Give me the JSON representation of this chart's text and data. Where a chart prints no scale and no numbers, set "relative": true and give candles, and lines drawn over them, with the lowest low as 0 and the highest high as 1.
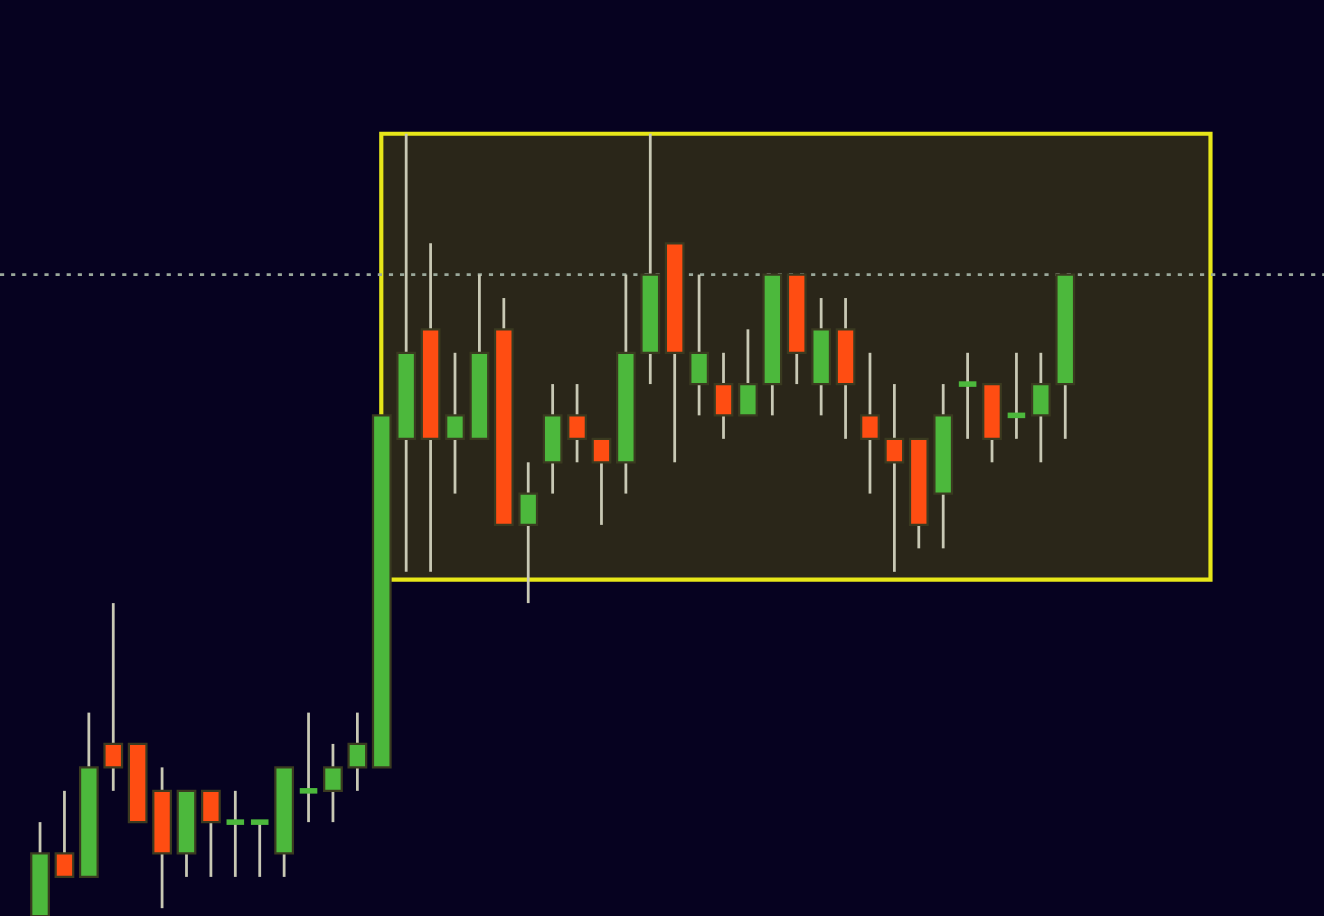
{
  "chart_data": {
    "type": "candlestick",
    "relative": true,
    "categories": [
      null,
      null,
      null,
      null,
      null,
      null,
      null,
      null,
      null,
      null,
      null,
      null,
      null,
      null,
      null,
      null,
      null,
      null,
      null,
      null,
      null,
      null,
      null,
      null,
      null,
      null,
      null,
      null,
      null,
      null,
      null,
      null,
      null,
      null,
      null,
      null,
      null,
      null,
      null,
      null,
      null,
      null,
      null
    ],
    "ohlc": [
      [
        0,
        0.12,
        0,
        0.08
      ],
      [
        0.08,
        0.16,
        0.05,
        0.05
      ],
      [
        0.05,
        0.26,
        0.05,
        0.19
      ],
      [
        0.22,
        0.4,
        0.16,
        0.19
      ],
      [
        0.22,
        0.22,
        0.12,
        0.12
      ],
      [
        0.16,
        0.19,
        0.01,
        0.08
      ],
      [
        0.08,
        0.16,
        0.05,
        0.16
      ],
      [
        0.16,
        0.16,
        0.05,
        0.12
      ],
      [
        0.12,
        0.16,
        0.05,
        0.12
      ],
      [
        0.12,
        0.12,
        0.05,
        0.12
      ],
      [
        0.08,
        0.19,
        0.05,
        0.19
      ],
      [
        0.16,
        0.26,
        0.12,
        0.16
      ],
      [
        0.16,
        0.22,
        0.12,
        0.19
      ],
      [
        0.19,
        0.26,
        0.16,
        0.22
      ],
      [
        0.19,
        0.64,
        0.19,
        0.64
      ],
      [
        0.61,
        1,
        0.44,
        0.72
      ],
      [
        0.75,
        0.86,
        0.44,
        0.61
      ],
      [
        0.61,
        0.72,
        0.54,
        0.64
      ],
      [
        0.61,
        0.82,
        0.61,
        0.72
      ],
      [
        0.75,
        0.79,
        0.5,
        0.5
      ],
      [
        0.5,
        0.58,
        0.4,
        0.54
      ],
      [
        0.58,
        0.68,
        0.54,
        0.64
      ],
      [
        0.64,
        0.68,
        0.58,
        0.61
      ],
      [
        0.61,
        0.61,
        0.5,
        0.58
      ],
      [
        0.58,
        0.82,
        0.54,
        0.72
      ],
      [
        0.72,
        1,
        0.68,
        0.82
      ],
      [
        0.86,
        0.86,
        0.58,
        0.72
      ],
      [
        0.68,
        0.82,
        0.64,
        0.72
      ],
      [
        0.68,
        0.72,
        0.61,
        0.64
      ],
      [
        0.64,
        0.75,
        0.64,
        0.68
      ],
      [
        0.68,
        0.82,
        0.64,
        0.82
      ],
      [
        0.82,
        0.82,
        0.68,
        0.72
      ],
      [
        0.68,
        0.79,
        0.64,
        0.75
      ],
      [
        0.75,
        0.79,
        0.61,
        0.68
      ],
      [
        0.64,
        0.72,
        0.54,
        0.61
      ],
      [
        0.61,
        0.68,
        0.44,
        0.58
      ],
      [
        0.61,
        0.61,
        0.47,
        0.5
      ],
      [
        0.54,
        0.68,
        0.47,
        0.64
      ],
      [
        0.68,
        0.72,
        0.61,
        0.68
      ],
      [
        0.68,
        0.68,
        0.58,
        0.61
      ],
      [
        0.64,
        0.72,
        0.61,
        0.64
      ],
      [
        0.64,
        0.72,
        0.58,
        0.68
      ],
      [
        0.68,
        0.82,
        0.61,
        0.82
      ]
    ],
    "colors": [
      "#4cb83c",
      "#ff4d12",
      "#4cb83c",
      "#ff4d12",
      "#ff4d12",
      "#ff4d12",
      "#4cb83c",
      "#ff4d12",
      "#4cb83c",
      "#4cb83c",
      "#4cb83c",
      "#4cb83c",
      "#4cb83c",
      "#4cb83c",
      "#4cb83c",
      "#4cb83c",
      "#ff4d12",
      "#4cb83c",
      "#4cb83c",
      "#ff4d12",
      "#4cb83c",
      "#4cb83c",
      "#ff4d12",
      "#ff4d12",
      "#4cb83c",
      "#4cb83c",
      "#ff4d12",
      "#4cb83c",
      "#ff4d12",
      "#4cb83c",
      "#4cb83c",
      "#ff4d12",
      "#4cb83c",
      "#ff4d12",
      "#ff4d12",
      "#ff4d12",
      "#ff4d12",
      "#4cb83c",
      "#4cb83c",
      "#ff4d12",
      "#4cb83c",
      "#4cb83c",
      "#4cb83c"
    ],
    "ref_lines": [
      {
        "axis": "y",
        "value": 0.82,
        "color": "#9aa89a",
        "line_style": "dotted"
      }
    ],
    "bands": [
      {
        "axis": "y",
        "from": 0.43,
        "to": 1.0,
        "color": "#2a2619"
      }
    ],
    "grid": false
  }
}
